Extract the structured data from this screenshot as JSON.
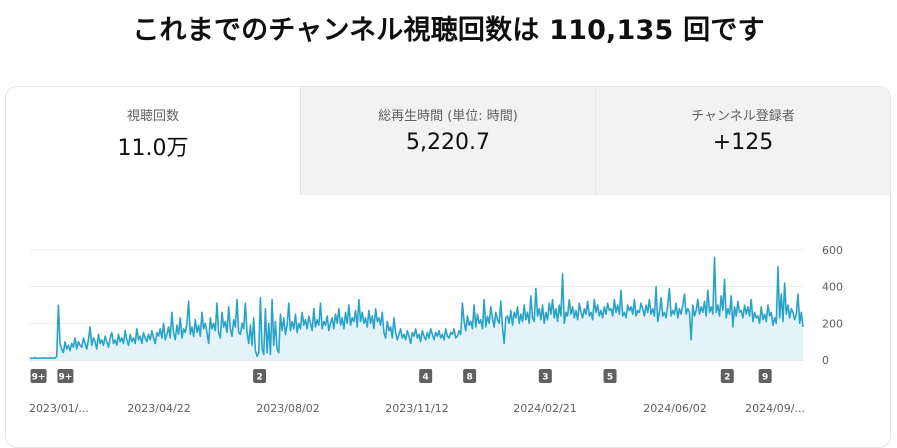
{
  "headline": "これまでのチャンネル視聴回数は 110,135 回です",
  "metrics": [
    {
      "label": "視聴回数",
      "value": "11.0万"
    },
    {
      "label": "総再生時間 (単位: 時間)",
      "value": "5,220.7"
    },
    {
      "label": "チャンネル登録者",
      "value": "+125"
    }
  ],
  "colors": {
    "line": "#2aa3c8",
    "fill": "#e3f3f9",
    "marker_bg": "#606060"
  },
  "chart_data": {
    "type": "area",
    "y_ticks": [
      "600",
      "400",
      "200",
      "0"
    ],
    "ylim": [
      0,
      600
    ],
    "x_tick_labels": [
      "2023/01/...",
      "2023/04/22",
      "2023/08/02",
      "2023/11/12",
      "2024/02/21",
      "2024/06/02",
      "2024/09/..."
    ],
    "x_range": [
      "2023/01/01",
      "2024/09/25"
    ],
    "markers": [
      {
        "date": "2023/01/08",
        "label": "9+"
      },
      {
        "date": "2023/01/30",
        "label": "9+"
      },
      {
        "date": "2023/07/08",
        "label": "2"
      },
      {
        "date": "2023/11/21",
        "label": "4"
      },
      {
        "date": "2023/12/27",
        "label": "8"
      },
      {
        "date": "2024/02/27",
        "label": "3"
      },
      {
        "date": "2024/04/20",
        "label": "5"
      },
      {
        "date": "2024/07/25",
        "label": "2"
      },
      {
        "date": "2024/08/25",
        "label": "9"
      }
    ],
    "grid": true,
    "series": [
      {
        "values": [
          10,
          9,
          11,
          12,
          10,
          9,
          11,
          10,
          12,
          10,
          11,
          9,
          12,
          10,
          11,
          10,
          20,
          300,
          90,
          60,
          40,
          100,
          60,
          80,
          50,
          90,
          70,
          120,
          60,
          100,
          80,
          70,
          120,
          90,
          60,
          110,
          180,
          80,
          120,
          100,
          60,
          140,
          90,
          110,
          80,
          130,
          100,
          70,
          120,
          150,
          90,
          110,
          80,
          140,
          100,
          120,
          90,
          160,
          110,
          80,
          140,
          100,
          120,
          90,
          170,
          110,
          130,
          90,
          150,
          120,
          100,
          140,
          110,
          160,
          120,
          90,
          150,
          130,
          170,
          120,
          200,
          110,
          140,
          180,
          120,
          260,
          150,
          110,
          190,
          140,
          230,
          120,
          170,
          150,
          200,
          320,
          140,
          180,
          130,
          220,
          150,
          190,
          130,
          260,
          170,
          200,
          150,
          90,
          230,
          170,
          200,
          160,
          310,
          150,
          120,
          260,
          180,
          210,
          150,
          290,
          170,
          130,
          220,
          180,
          330,
          150,
          140,
          200,
          170,
          310,
          150,
          90,
          190,
          80,
          230,
          50,
          20,
          40,
          340,
          60,
          30,
          280,
          40,
          200,
          30,
          330,
          80,
          210,
          60,
          40,
          250,
          160,
          230,
          140,
          190,
          310,
          160,
          210,
          170,
          250,
          150,
          200,
          170,
          260,
          190,
          220,
          170,
          240,
          200,
          160,
          280,
          180,
          220,
          190,
          310,
          170,
          210,
          190,
          240,
          160,
          200,
          230,
          170,
          250,
          200,
          280,
          190,
          230,
          170,
          260,
          200,
          300,
          190,
          230,
          210,
          270,
          180,
          330,
          210,
          260,
          200,
          230,
          180,
          270,
          200,
          240,
          170,
          280,
          210,
          230,
          190,
          260,
          150,
          120,
          210,
          160,
          180,
          120,
          230,
          150,
          110,
          140,
          170,
          120,
          140,
          110,
          160,
          130,
          90,
          150,
          130,
          170,
          120,
          140,
          100,
          160,
          130,
          110,
          150,
          120,
          170,
          140,
          110,
          150,
          130,
          160,
          120,
          140,
          110,
          170,
          130,
          120,
          150,
          140,
          170,
          120,
          130,
          160,
          140,
          310,
          210,
          160,
          240,
          190,
          210,
          170,
          300,
          180,
          250,
          200,
          220,
          170,
          330,
          180,
          240,
          200,
          290,
          230,
          180,
          260,
          220,
          200,
          320,
          180,
          90,
          230,
          240,
          200,
          270,
          190,
          260,
          230,
          290,
          200,
          250,
          210,
          300,
          220,
          260,
          200,
          350,
          230,
          210,
          390,
          240,
          280,
          220,
          300,
          200,
          260,
          220,
          310,
          250,
          330,
          230,
          280,
          210,
          300,
          240,
          470,
          200,
          260,
          240,
          330,
          250,
          290,
          230,
          270,
          220,
          310,
          260,
          230,
          280,
          250,
          320,
          240,
          260,
          220,
          330,
          260,
          300,
          240,
          270,
          230,
          290,
          250,
          310,
          270,
          280,
          240,
          330,
          260,
          300,
          250,
          380,
          240,
          260,
          230,
          300,
          270,
          290,
          250,
          330,
          240,
          270,
          260,
          310,
          280,
          240,
          300,
          260,
          330,
          250,
          280,
          240,
          400,
          210,
          260,
          340,
          240,
          260,
          230,
          300,
          390,
          240,
          270,
          250,
          310,
          230,
          280,
          250,
          300,
          360,
          250,
          280,
          260,
          110,
          300,
          240,
          270,
          330,
          250,
          290,
          260,
          320,
          240,
          380,
          260,
          290,
          250,
          560,
          260,
          300,
          240,
          350,
          270,
          440,
          230,
          280,
          250,
          350,
          180,
          290,
          240,
          320,
          260,
          270,
          230,
          300,
          250,
          290,
          240,
          330,
          210,
          260,
          230,
          240,
          200,
          290,
          220,
          250,
          210,
          300,
          240,
          260,
          190,
          230,
          200,
          510,
          230,
          360,
          210,
          420,
          250,
          300,
          230,
          280,
          260,
          220,
          250,
          360,
          200,
          260,
          180
        ]
      }
    ]
  }
}
